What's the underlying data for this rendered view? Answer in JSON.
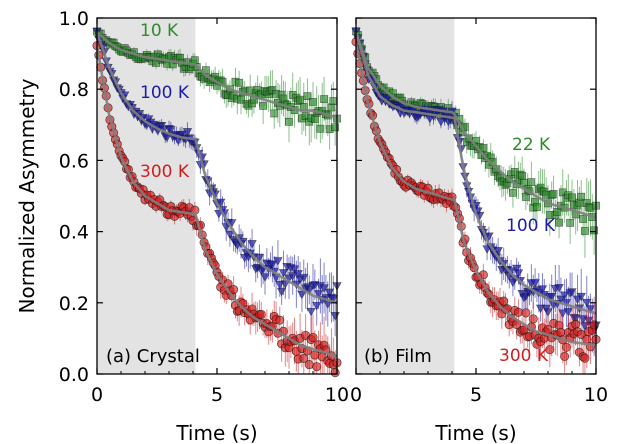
{
  "figure": {
    "ylabel": "Normalized Asymmetry",
    "colors": {
      "shade": "#e3e3e3",
      "fit": "#7f7f7f",
      "10K": "#2e8b2e",
      "22K": "#2e8b2e",
      "100K": "#1c1ca8",
      "300K": "#d21e1e"
    }
  },
  "chart_data": [
    {
      "type": "scatter",
      "panel_label": "(a) Crystal",
      "xlabel": "Time (s)",
      "ylabel": "Normalized Asymmetry",
      "xlim": [
        0,
        10
      ],
      "ylim": [
        0,
        1
      ],
      "xticks": [
        "0",
        "5",
        "10"
      ],
      "yticks": [
        "0.0",
        "0.2",
        "0.4",
        "0.6",
        "0.8",
        "1.0"
      ],
      "shaded_region": [
        0,
        4.1
      ],
      "grid": false,
      "series": [
        {
          "name": "10 K",
          "marker": "square",
          "color_key": "10K",
          "x": [
            0,
            0.5,
            1,
            1.5,
            2,
            2.5,
            3,
            3.5,
            4,
            4.1,
            4.5,
            5,
            5.5,
            6,
            6.5,
            7,
            7.5,
            8,
            8.5,
            9,
            9.5,
            10
          ],
          "y": [
            0.96,
            0.93,
            0.91,
            0.9,
            0.89,
            0.885,
            0.88,
            0.875,
            0.87,
            0.87,
            0.84,
            0.82,
            0.8,
            0.79,
            0.78,
            0.77,
            0.76,
            0.75,
            0.74,
            0.74,
            0.73,
            0.72
          ]
        },
        {
          "name": "100 K",
          "marker": "triangle-down",
          "color_key": "100K",
          "x": [
            0,
            0.5,
            1,
            1.5,
            2,
            2.5,
            3,
            3.5,
            4,
            4.1,
            4.5,
            5,
            5.5,
            6,
            6.5,
            7,
            7.5,
            8,
            8.5,
            9,
            9.5,
            10
          ],
          "y": [
            0.96,
            0.86,
            0.79,
            0.74,
            0.71,
            0.69,
            0.675,
            0.665,
            0.66,
            0.66,
            0.56,
            0.48,
            0.42,
            0.37,
            0.33,
            0.3,
            0.28,
            0.26,
            0.24,
            0.22,
            0.21,
            0.2
          ]
        },
        {
          "name": "300 K",
          "marker": "circle",
          "color_key": "300K",
          "x": [
            0,
            0.5,
            1,
            1.5,
            2,
            2.5,
            3,
            3.5,
            4,
            4.1,
            4.5,
            5,
            5.5,
            6,
            6.5,
            7,
            7.5,
            8,
            8.5,
            9,
            9.5,
            10
          ],
          "y": [
            0.92,
            0.73,
            0.61,
            0.54,
            0.5,
            0.48,
            0.46,
            0.455,
            0.45,
            0.45,
            0.35,
            0.28,
            0.23,
            0.19,
            0.16,
            0.14,
            0.12,
            0.1,
            0.08,
            0.07,
            0.06,
            0.05
          ]
        }
      ]
    },
    {
      "type": "scatter",
      "panel_label": "(b) Film",
      "xlabel": "Time (s)",
      "xlim": [
        0,
        10
      ],
      "ylim": [
        0,
        1
      ],
      "xticks": [
        "0",
        "5",
        "10"
      ],
      "shaded_region": [
        0,
        4.1
      ],
      "grid": false,
      "series": [
        {
          "name": "22 K",
          "marker": "square",
          "color_key": "22K",
          "x": [
            0,
            0.5,
            1,
            1.5,
            2,
            2.5,
            3,
            3.5,
            4,
            4.1,
            4.5,
            5,
            5.5,
            6,
            6.5,
            7,
            7.5,
            8,
            8.5,
            9,
            9.5,
            10
          ],
          "y": [
            0.96,
            0.86,
            0.81,
            0.78,
            0.76,
            0.75,
            0.745,
            0.74,
            0.735,
            0.73,
            0.68,
            0.64,
            0.6,
            0.57,
            0.54,
            0.52,
            0.5,
            0.48,
            0.47,
            0.46,
            0.45,
            0.44
          ]
        },
        {
          "name": "100 K",
          "marker": "triangle-down",
          "color_key": "100K",
          "x": [
            0,
            0.5,
            1,
            1.5,
            2,
            2.5,
            3,
            3.5,
            4,
            4.1,
            4.5,
            5,
            5.5,
            6,
            6.5,
            7,
            7.5,
            8,
            8.5,
            9,
            9.5,
            10
          ],
          "y": [
            0.96,
            0.84,
            0.78,
            0.755,
            0.74,
            0.735,
            0.73,
            0.725,
            0.72,
            0.72,
            0.57,
            0.45,
            0.37,
            0.32,
            0.28,
            0.25,
            0.23,
            0.21,
            0.2,
            0.19,
            0.18,
            0.17
          ]
        },
        {
          "name": "300 K",
          "marker": "circle",
          "color_key": "300K",
          "x": [
            0,
            0.5,
            1,
            1.5,
            2,
            2.5,
            3,
            3.5,
            4,
            4.1,
            4.5,
            5,
            5.5,
            6,
            6.5,
            7,
            7.5,
            8,
            8.5,
            9,
            9.5,
            10
          ],
          "y": [
            0.93,
            0.76,
            0.65,
            0.58,
            0.54,
            0.52,
            0.51,
            0.5,
            0.49,
            0.49,
            0.37,
            0.29,
            0.23,
            0.19,
            0.16,
            0.14,
            0.12,
            0.11,
            0.1,
            0.09,
            0.085,
            0.08
          ]
        }
      ]
    }
  ]
}
